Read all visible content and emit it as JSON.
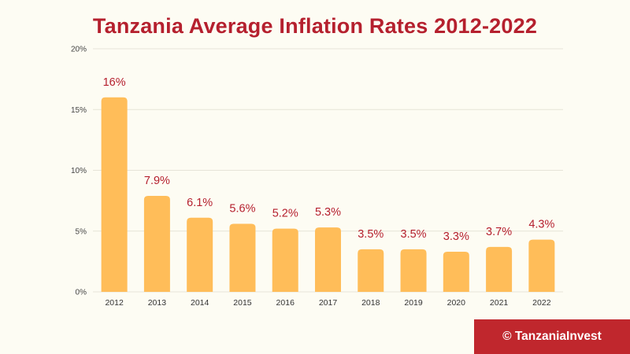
{
  "chart_data": {
    "type": "bar",
    "title": "Tanzania Average Inflation Rates 2012-2022",
    "xlabel": "",
    "ylabel": "",
    "categories": [
      "2012",
      "2013",
      "2014",
      "2015",
      "2016",
      "2017",
      "2018",
      "2019",
      "2020",
      "2021",
      "2022"
    ],
    "values": [
      16,
      7.9,
      6.1,
      5.6,
      5.2,
      5.3,
      3.5,
      3.5,
      3.3,
      3.7,
      4.3
    ],
    "data_labels": [
      "16%",
      "7.9%",
      "6.1%",
      "5.6%",
      "5.2%",
      "5.3%",
      "3.5%",
      "3.5%",
      "3.3%",
      "3.7%",
      "4.3%"
    ],
    "ylim": [
      0,
      20
    ],
    "yticks": [
      0,
      5,
      10,
      15,
      20
    ],
    "ytick_labels": [
      "0%",
      "5%",
      "10%",
      "15%",
      "20%"
    ],
    "grid": true,
    "legend": "none"
  },
  "brand": {
    "text": "© TanzaniaInvest"
  },
  "colors": {
    "background": "#fdfcf3",
    "title": "#b5202e",
    "bar": "#ffbd59",
    "data_label": "#b5202e",
    "grid": "#e6e4d8",
    "brand_bg": "#c0272d"
  }
}
